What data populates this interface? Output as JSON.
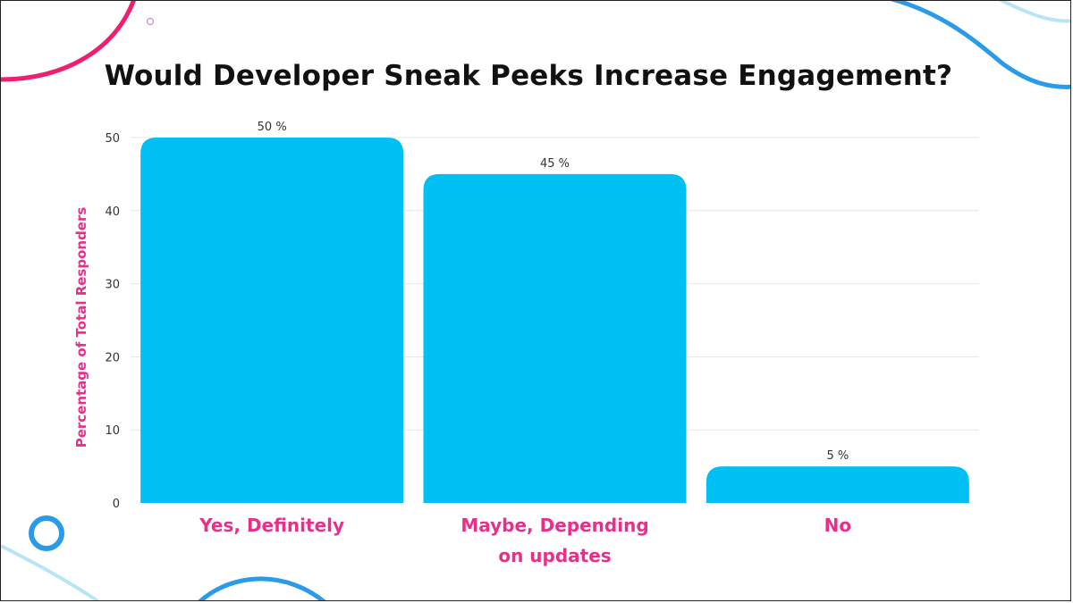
{
  "colors": {
    "bar": "#00bff3",
    "accent": "#e8308a",
    "grid": "#e6e6e6",
    "deco_pink": "#f01e6e",
    "deco_blue": "#2a9be8",
    "deco_lightblue": "#b8e4f7"
  },
  "chart_data": {
    "type": "bar",
    "title": "Would Developer Sneak Peeks Increase Engagement?",
    "ylabel": "Percentage of Total Responders",
    "xlabel": "",
    "categories": [
      [
        "Yes, Definitely"
      ],
      [
        "Maybe, Depending",
        "on updates"
      ],
      [
        "No"
      ]
    ],
    "values": [
      50,
      45,
      5
    ],
    "data_labels": [
      "50 %",
      "45 %",
      "5 %"
    ],
    "yticks": [
      0,
      10,
      20,
      30,
      40,
      50
    ],
    "ylim": [
      0,
      50
    ],
    "grid": true,
    "legend": "none"
  }
}
